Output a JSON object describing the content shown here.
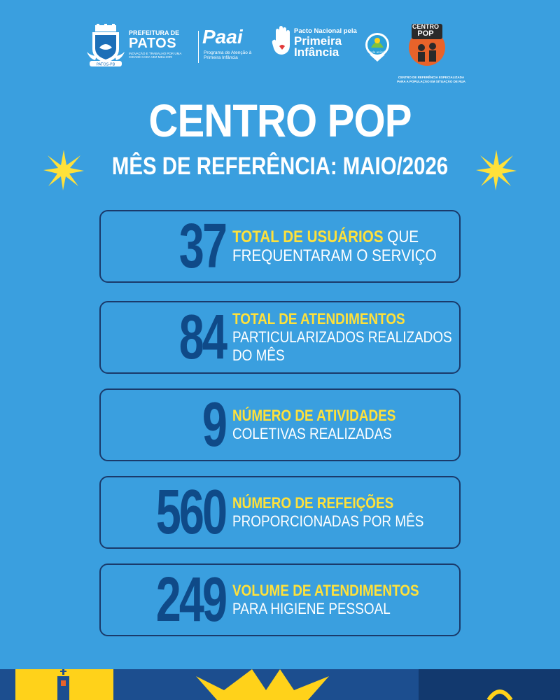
{
  "header": {
    "patos": {
      "line1": "PREFEITURA DE",
      "line2": "PATOS",
      "tagline": "INOVAÇÃO E TRABALHO POR UMA CIDADE CADA VEZ MELHOR!",
      "crest_label": "PATOS-PB"
    },
    "paai": {
      "word": "Paai",
      "subtitle": "Programa de Atenção à Primeira Infância"
    },
    "pacto": {
      "small": "Pacto Nacional pela",
      "line1": "Primeira",
      "line2": "Infância"
    },
    "selo": {
      "label": "selo unicef"
    },
    "centro_pop": {
      "line1": "CENTRO",
      "line2": "POP",
      "subtitle": "CENTRO DE REFERÊNCIA ESPECIALIZADA PARA A POPULAÇÃO EM SITUAÇÃO DE RUA"
    }
  },
  "title": "CENTRO POP",
  "subtitle": "MÊS DE REFERÊNCIA: MAIO/2026",
  "colors": {
    "background": "#3a9fdf",
    "number": "#0f4a88",
    "highlight": "#ffe13a",
    "card_border": "#1a3a6b"
  },
  "stats": [
    {
      "value": "37",
      "highlight": "TOTAL DE USUÁRIOS",
      "rest": " QUE",
      "lines": [
        "FREQUENTARAM O SERVIÇO"
      ]
    },
    {
      "value": "84",
      "highlight": "TOTAL DE ATENDIMENTOS",
      "rest": "",
      "lines": [
        "PARTICULARIZADOS REALIZADOS",
        "DO MÊS"
      ]
    },
    {
      "value": "9",
      "highlight": "NÚMERO DE ATIVIDADES",
      "rest": "",
      "lines": [
        "COLETIVAS REALIZADAS"
      ]
    },
    {
      "value": "560",
      "highlight": "NÚMERO DE REFEIÇÕES",
      "rest": "",
      "lines": [
        "PROPORCIONADAS POR MÊS"
      ]
    },
    {
      "value": "249",
      "highlight": "VOLUME DE ATENDIMENTOS",
      "rest": "",
      "lines": [
        "PARA HIGIENE PESSOAL"
      ]
    }
  ]
}
